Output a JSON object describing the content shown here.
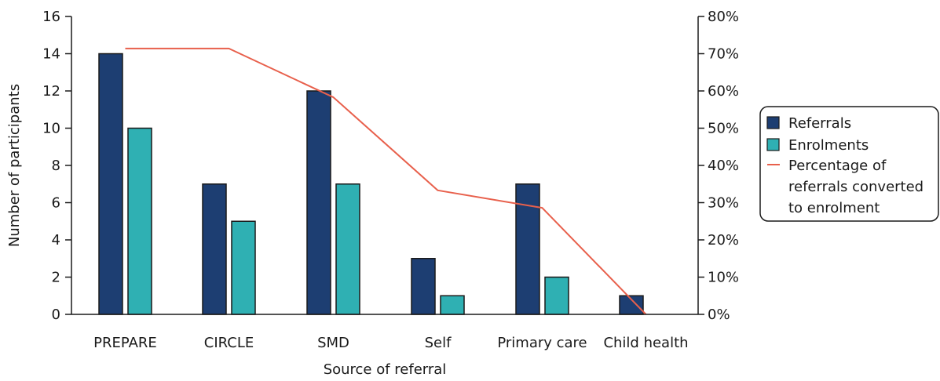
{
  "chart_data": {
    "type": "bar",
    "categories": [
      "PREPARE",
      "CIRCLE",
      "SMD",
      "Self",
      "Primary care",
      "Child health"
    ],
    "series": [
      {
        "name": "Referrals",
        "type": "bar",
        "axis": "left",
        "color": "#1d3e72",
        "values": [
          14,
          7,
          12,
          3,
          7,
          1
        ]
      },
      {
        "name": "Enrolments",
        "type": "bar",
        "axis": "left",
        "color": "#2fb0b3",
        "values": [
          10,
          5,
          7,
          1,
          2,
          0
        ]
      },
      {
        "name": "Percentage of referrals converted to enrolment",
        "type": "line",
        "axis": "right",
        "color": "#e8604c",
        "values": [
          71.4,
          71.4,
          58.3,
          33.3,
          28.6,
          0
        ]
      }
    ],
    "legend_lines": [
      "Referrals",
      "Enrolments",
      "Percentage of",
      "referrals converted",
      "to enrolment"
    ],
    "xlabel": "Source of referral",
    "ylabel": "Number of participants",
    "ylim": [
      0,
      16
    ],
    "y_ticks": [
      "0",
      "2",
      "4",
      "6",
      "8",
      "10",
      "12",
      "14",
      "16"
    ],
    "y2lim": [
      0,
      80
    ],
    "y2_ticks": [
      "0%",
      "10%",
      "20%",
      "30%",
      "40%",
      "50%",
      "60%",
      "70%",
      "80%"
    ],
    "legend_position": "right",
    "grid": false
  }
}
